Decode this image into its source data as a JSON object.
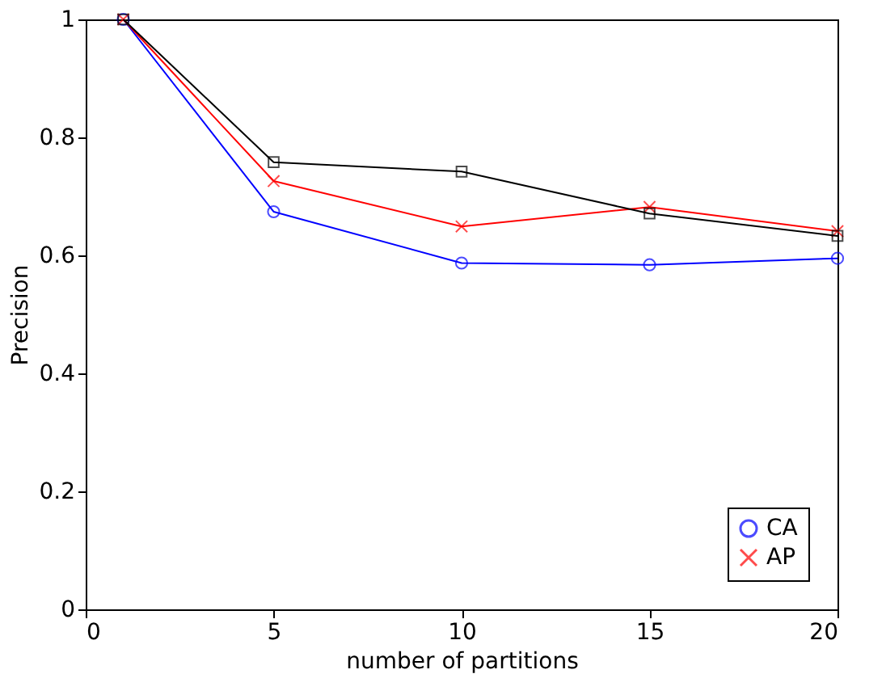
{
  "chart_data": {
    "type": "line",
    "xlabel": "number of partitions",
    "ylabel": "Precision",
    "x": [
      1,
      5,
      10,
      15,
      20
    ],
    "series": [
      {
        "name": "CA",
        "color": "#0000ff",
        "marker": "circle",
        "values": [
          1.0,
          0.674,
          0.587,
          0.584,
          0.595
        ]
      },
      {
        "name": "AP",
        "color": "#ff0000",
        "marker": "cross",
        "values": [
          1.0,
          0.726,
          0.649,
          0.682,
          0.641
        ]
      },
      {
        "color": "#000000",
        "marker": "square",
        "values": [
          1.0,
          0.758,
          0.742,
          0.671,
          0.633
        ]
      }
    ],
    "xlim": [
      0,
      20
    ],
    "xticks": [
      0,
      5,
      10,
      15,
      20
    ],
    "ylim": [
      0,
      1
    ],
    "yticks": [
      0,
      0.2,
      0.4,
      0.6,
      0.8,
      1
    ],
    "grid": false,
    "legend": "bottom right",
    "line_style": "solid"
  }
}
